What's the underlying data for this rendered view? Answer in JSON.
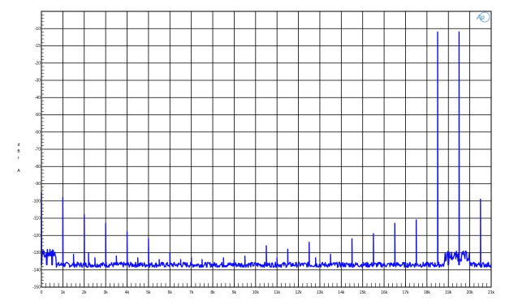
{
  "chart_data": {
    "type": "line",
    "title": "",
    "xlabel": "",
    "ylabel": "d B r A",
    "ylabel_letters": [
      "d",
      "B",
      "r",
      "",
      "A"
    ],
    "logo_text": "Ap",
    "xlim": [
      0,
      21000
    ],
    "ylim": [
      -150,
      0
    ],
    "log_scale": false,
    "grid": true,
    "legend": "none",
    "line_color": "#1010ee",
    "x_ticks": [
      {
        "value": 0,
        "label": "0"
      },
      {
        "value": 1000,
        "label": "1k"
      },
      {
        "value": 2000,
        "label": "2k"
      },
      {
        "value": 3000,
        "label": "3k"
      },
      {
        "value": 4000,
        "label": "4k"
      },
      {
        "value": 5000,
        "label": "5k"
      },
      {
        "value": 6000,
        "label": "6k"
      },
      {
        "value": 7000,
        "label": "7k"
      },
      {
        "value": 8000,
        "label": "8k"
      },
      {
        "value": 9000,
        "label": "9k"
      },
      {
        "value": 10000,
        "label": "10k"
      },
      {
        "value": 11000,
        "label": "11k"
      },
      {
        "value": 12000,
        "label": "12k"
      },
      {
        "value": 13000,
        "label": "13k"
      },
      {
        "value": 14000,
        "label": "14k"
      },
      {
        "value": 15000,
        "label": "15k"
      },
      {
        "value": 16000,
        "label": "16k"
      },
      {
        "value": 17000,
        "label": "17k"
      },
      {
        "value": 18000,
        "label": "18k"
      },
      {
        "value": 19000,
        "label": "19k"
      },
      {
        "value": 20000,
        "label": "20k"
      },
      {
        "value": 21000,
        "label": "21k"
      }
    ],
    "y_ticks": [
      {
        "value": -10,
        "label": "-10"
      },
      {
        "value": -15,
        "label": "-15"
      },
      {
        "value": -20,
        "label": "-20"
      },
      {
        "value": -30,
        "label": "-30"
      },
      {
        "value": -40,
        "label": "-40"
      },
      {
        "value": -50,
        "label": "-50"
      },
      {
        "value": -60,
        "label": "-60"
      },
      {
        "value": -70,
        "label": "-70"
      },
      {
        "value": -80,
        "label": "-80"
      },
      {
        "value": -90,
        "label": "-90"
      },
      {
        "value": -100,
        "label": "-100"
      },
      {
        "value": -110,
        "label": "-110"
      },
      {
        "value": -120,
        "label": "-120"
      },
      {
        "value": -130,
        "label": "-130"
      },
      {
        "value": -140,
        "label": "-140"
      },
      {
        "value": -150,
        "label": "-150"
      }
    ],
    "series": [
      {
        "color": "#1010ee",
        "noise_floor": -137,
        "peaks": [
          {
            "x": 0,
            "y": -95
          },
          {
            "x": 250,
            "y": -130
          },
          {
            "x": 500,
            "y": -132
          },
          {
            "x": 1000,
            "y": -98
          },
          {
            "x": 1500,
            "y": -131
          },
          {
            "x": 2000,
            "y": -108
          },
          {
            "x": 2200,
            "y": -130
          },
          {
            "x": 2500,
            "y": -133
          },
          {
            "x": 3000,
            "y": -113
          },
          {
            "x": 3500,
            "y": -132
          },
          {
            "x": 4000,
            "y": -118
          },
          {
            "x": 4500,
            "y": -133
          },
          {
            "x": 5000,
            "y": -122
          },
          {
            "x": 5500,
            "y": -134
          },
          {
            "x": 6000,
            "y": -130
          },
          {
            "x": 6500,
            "y": -134
          },
          {
            "x": 7000,
            "y": -133
          },
          {
            "x": 7500,
            "y": -134
          },
          {
            "x": 8500,
            "y": -133
          },
          {
            "x": 9000,
            "y": -134
          },
          {
            "x": 9500,
            "y": -132
          },
          {
            "x": 10500,
            "y": -126
          },
          {
            "x": 11000,
            "y": -133
          },
          {
            "x": 11500,
            "y": -128
          },
          {
            "x": 12500,
            "y": -124
          },
          {
            "x": 12800,
            "y": -133
          },
          {
            "x": 13500,
            "y": -131
          },
          {
            "x": 14500,
            "y": -122
          },
          {
            "x": 15500,
            "y": -119
          },
          {
            "x": 16500,
            "y": -113
          },
          {
            "x": 17500,
            "y": -111
          },
          {
            "x": 18500,
            "y": -11
          },
          {
            "x": 19000,
            "y": -130
          },
          {
            "x": 19500,
            "y": -11
          },
          {
            "x": 20500,
            "y": -99
          }
        ]
      }
    ]
  }
}
